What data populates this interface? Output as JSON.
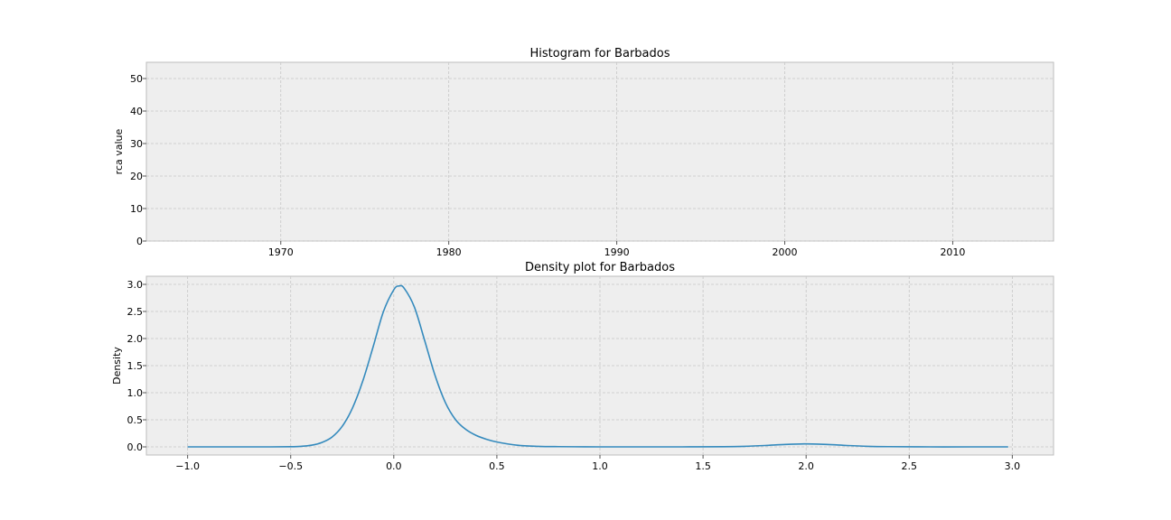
{
  "chart_data": [
    {
      "type": "bar",
      "title": "Histogram for Barbados",
      "xlabel": "",
      "ylabel": "rca value",
      "xlim": [
        1962,
        2016
      ],
      "ylim": [
        0,
        55
      ],
      "x_ticks": [
        "1970",
        "1980",
        "1990",
        "2000",
        "2010"
      ],
      "x_tick_values": [
        1970,
        1980,
        1990,
        2000,
        2010
      ],
      "y_ticks": [
        "0",
        "10",
        "20",
        "30",
        "40",
        "50"
      ],
      "y_tick_values": [
        0,
        10,
        20,
        30,
        40,
        50
      ],
      "grid": true,
      "series": [],
      "values": []
    },
    {
      "type": "line",
      "title": "Density plot for Barbados",
      "xlabel": "",
      "ylabel": "Density",
      "xlim": [
        -1.2,
        3.2
      ],
      "ylim": [
        -0.15,
        3.15
      ],
      "x_ticks": [
        "−1.0",
        "−0.5",
        "0.0",
        "0.5",
        "1.0",
        "1.5",
        "2.0",
        "2.5",
        "3.0"
      ],
      "x_tick_values": [
        -1.0,
        -0.5,
        0.0,
        0.5,
        1.0,
        1.5,
        2.0,
        2.5,
        3.0
      ],
      "y_ticks": [
        "0.0",
        "0.5",
        "1.0",
        "1.5",
        "2.0",
        "2.5",
        "3.0"
      ],
      "y_tick_values": [
        0.0,
        0.5,
        1.0,
        1.5,
        2.0,
        2.5,
        3.0
      ],
      "grid": true,
      "series": [
        {
          "x": [
            -1.0,
            -0.8,
            -0.6,
            -0.5,
            -0.45,
            -0.4,
            -0.35,
            -0.3,
            -0.25,
            -0.2,
            -0.15,
            -0.1,
            -0.05,
            0.0,
            0.025,
            0.05,
            0.1,
            0.15,
            0.2,
            0.25,
            0.3,
            0.35,
            0.4,
            0.45,
            0.5,
            0.6,
            0.7,
            0.8,
            1.0,
            1.2,
            1.4,
            1.6,
            1.7,
            1.8,
            1.9,
            2.0,
            2.1,
            2.2,
            2.3,
            2.4,
            2.6,
            2.8,
            2.98
          ],
          "y": [
            0.0,
            0.0,
            0.0,
            0.003,
            0.01,
            0.03,
            0.08,
            0.18,
            0.38,
            0.72,
            1.22,
            1.85,
            2.5,
            2.9,
            2.97,
            2.93,
            2.58,
            1.96,
            1.32,
            0.82,
            0.5,
            0.32,
            0.21,
            0.14,
            0.09,
            0.03,
            0.01,
            0.004,
            0.0,
            0.0,
            0.0,
            0.003,
            0.01,
            0.025,
            0.045,
            0.055,
            0.045,
            0.025,
            0.01,
            0.004,
            0.0,
            0.0,
            0.0
          ]
        }
      ]
    }
  ]
}
